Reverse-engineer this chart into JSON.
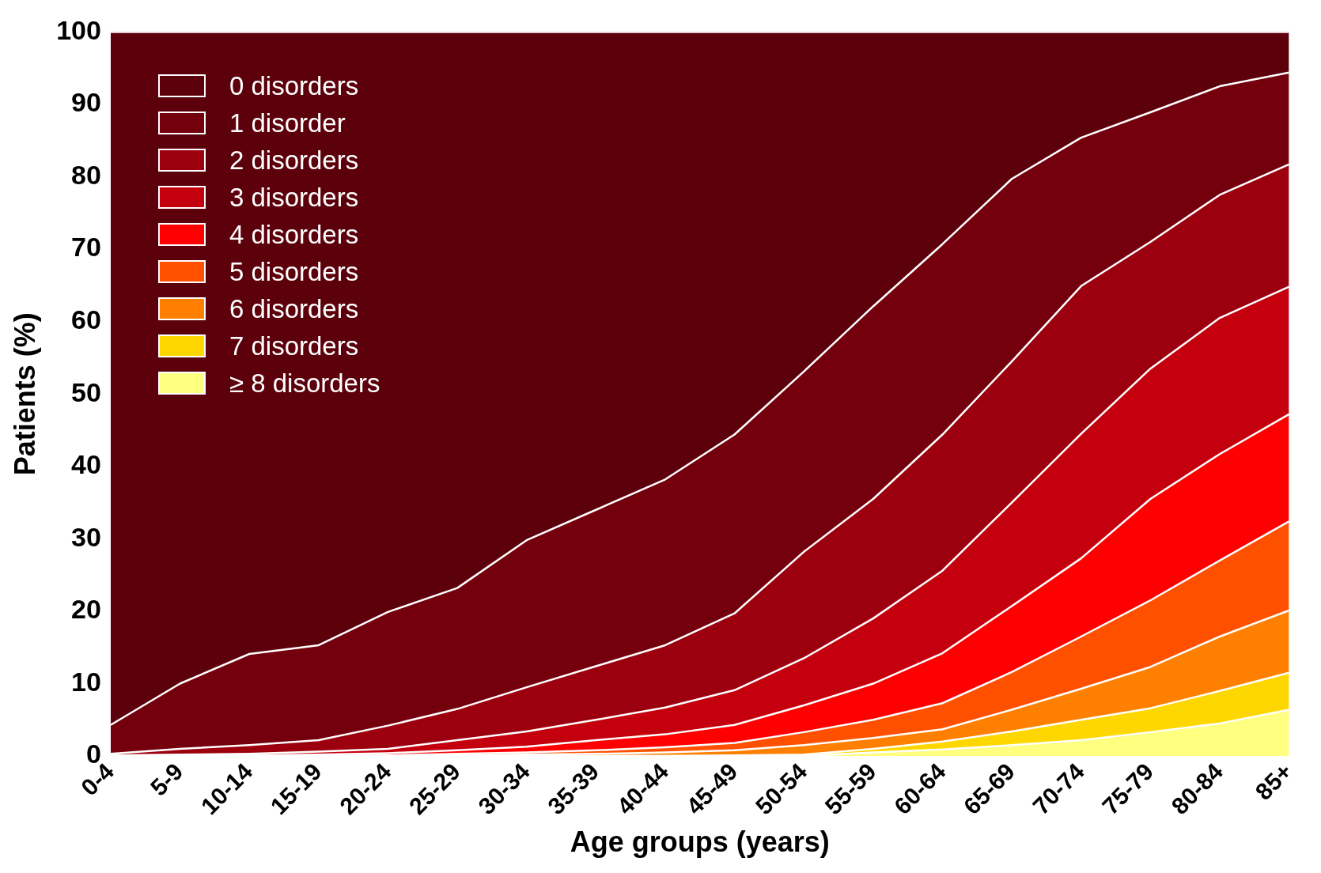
{
  "chart_data": {
    "type": "area",
    "stacked": true,
    "xlabel": "Age groups (years)",
    "ylabel": "Patients (%)",
    "categories": [
      "0-4",
      "5-9",
      "10-14",
      "15-19",
      "20-24",
      "25-29",
      "30-34",
      "35-39",
      "40-44",
      "45-49",
      "50-54",
      "55-59",
      "60-64",
      "65-69",
      "70-74",
      "75-79",
      "80-84",
      "85+"
    ],
    "ylim": [
      0,
      100
    ],
    "yticks": [
      0,
      10,
      20,
      30,
      40,
      50,
      60,
      70,
      80,
      90,
      100
    ],
    "grid": false,
    "legend": "top left",
    "series": [
      {
        "name": "≥ 8 disorders",
        "color": "#ffff80",
        "values": [
          0,
          0,
          0,
          0,
          0,
          0,
          0,
          0,
          0,
          0,
          0,
          0.5,
          0.9,
          1.5,
          2.2,
          3.3,
          4.5,
          6.4
        ]
      },
      {
        "name": "7 disorders",
        "color": "#ffd700",
        "values": [
          0,
          0,
          0,
          0,
          0,
          0,
          0,
          0,
          0,
          0.1,
          0.2,
          0.5,
          1.1,
          1.9,
          2.8,
          3.3,
          4.5,
          5.1
        ]
      },
      {
        "name": "6 disorders",
        "color": "#ff8000",
        "values": [
          0,
          0,
          0,
          0,
          0,
          0.1,
          0.2,
          0.3,
          0.5,
          0.7,
          1.3,
          1.5,
          1.7,
          3.0,
          4.3,
          5.7,
          7.5,
          8.6
        ]
      },
      {
        "name": "5 disorders",
        "color": "#ff5000",
        "values": [
          0,
          0,
          0,
          0,
          0.1,
          0.2,
          0.3,
          0.5,
          0.7,
          1.0,
          1.8,
          2.5,
          3.6,
          5.2,
          7.2,
          9.2,
          10.5,
          12.3
        ]
      },
      {
        "name": "4 disorders",
        "color": "#ff0000",
        "values": [
          0,
          0.1,
          0.1,
          0.2,
          0.3,
          0.5,
          0.8,
          1.4,
          1.8,
          2.5,
          3.7,
          5.0,
          6.9,
          9.1,
          10.8,
          14.0,
          14.7,
          14.8
        ]
      },
      {
        "name": "3 disorders",
        "color": "#c4000e",
        "values": [
          0.1,
          0.1,
          0.2,
          0.4,
          0.6,
          1.4,
          2.1,
          2.8,
          3.7,
          4.8,
          6.5,
          9.0,
          11.4,
          14.3,
          17.2,
          18.0,
          18.8,
          17.6
        ]
      },
      {
        "name": "2 disorders",
        "color": "#9c000e",
        "values": [
          0.2,
          0.8,
          1.2,
          1.6,
          3.2,
          4.3,
          6.1,
          7.4,
          8.6,
          10.6,
          14.7,
          16.5,
          18.8,
          19.5,
          20.4,
          17.5,
          17.0,
          16.9
        ]
      },
      {
        "name": "1 disorder",
        "color": "#74000d",
        "values": [
          4.0,
          9.0,
          12.6,
          13.1,
          15.7,
          16.7,
          20.3,
          21.6,
          22.9,
          24.7,
          24.9,
          26.6,
          26.3,
          25.2,
          20.5,
          17.9,
          15.0,
          12.7
        ]
      },
      {
        "name": "0 disorders",
        "color": "#5c000c",
        "values": [
          95.7,
          90.0,
          85.9,
          84.7,
          80.1,
          76.8,
          70.2,
          66.0,
          61.8,
          55.6,
          46.9,
          37.9,
          29.3,
          20.3,
          14.6,
          11.1,
          7.5,
          5.6
        ]
      }
    ]
  }
}
